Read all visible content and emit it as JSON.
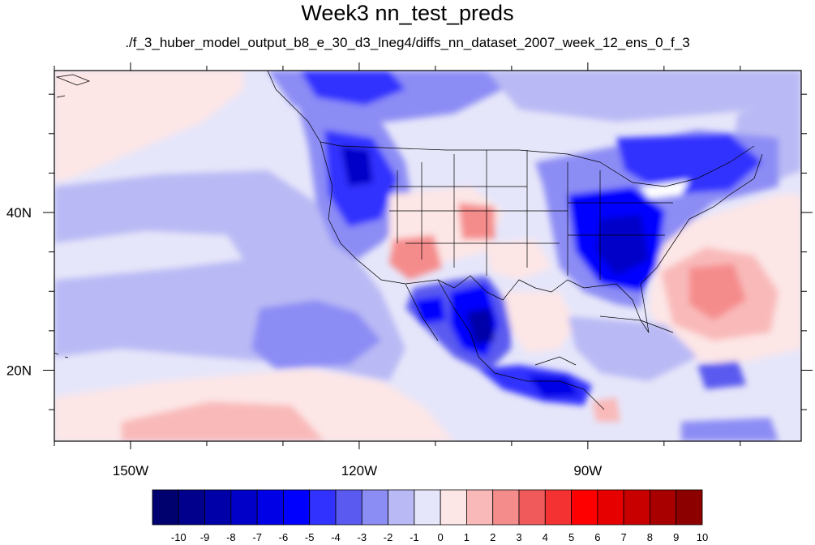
{
  "title": "Week3 nn_test_preds",
  "subtitle": "./f_3_huber_model_output_b8_e_30_d3_lneg4/diffs_nn_dataset_2007_week_12_ens_0_f_3",
  "map": {
    "lon_range": [
      -160,
      -62
    ],
    "lat_range": [
      11,
      58
    ],
    "x_ticks": [
      {
        "lon": -150,
        "label": "150W"
      },
      {
        "lon": -120,
        "label": "120W"
      },
      {
        "lon": -90,
        "label": "90W"
      }
    ],
    "y_ticks": [
      {
        "lat": 40,
        "label": "40N"
      },
      {
        "lat": 20,
        "label": "20N"
      }
    ],
    "minor_x_step": 10,
    "minor_y_step": 5
  },
  "colorbar": {
    "labels": [
      "-10",
      "-9",
      "-8",
      "-7",
      "-6",
      "-5",
      "-4",
      "-3",
      "-2",
      "-1",
      "0",
      "1",
      "2",
      "3",
      "4",
      "5",
      "6",
      "7",
      "8",
      "9",
      "10"
    ],
    "colors": [
      "#00006e",
      "#00008c",
      "#0000a8",
      "#0000c8",
      "#0000e6",
      "#0000ff",
      "#3232ff",
      "#5a5af0",
      "#8c8cf5",
      "#b9b9f5",
      "#e6e6fa",
      "#fde6e6",
      "#f9b9b9",
      "#f58c8c",
      "#f05a5a",
      "#f53232",
      "#ff0000",
      "#e60000",
      "#c80000",
      "#a80000",
      "#8c0000"
    ]
  }
}
